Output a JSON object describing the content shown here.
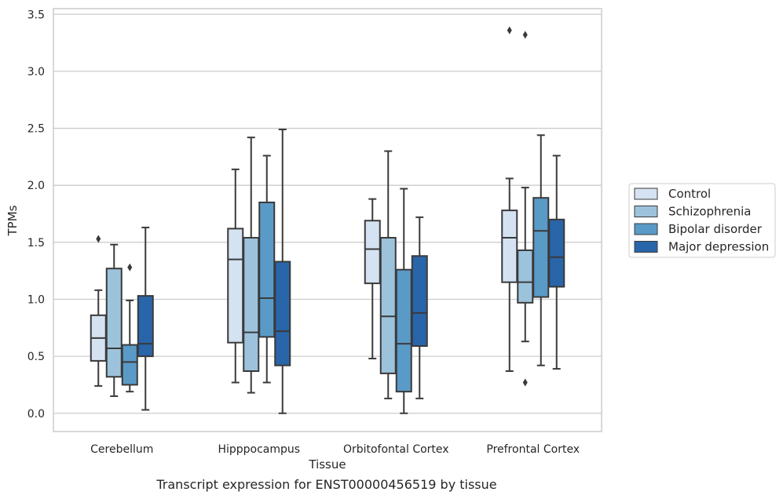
{
  "caption": "Transcript expression for ENST00000456519 by tissue",
  "chart_data": {
    "type": "box",
    "xlabel": "Tissue",
    "ylabel": "TPMs",
    "ylim": [
      -0.16,
      3.55
    ],
    "yticks": [
      "0.0",
      "0.5",
      "1.0",
      "1.5",
      "2.0",
      "2.5",
      "3.0",
      "3.5"
    ],
    "ytick_values": [
      0,
      0.5,
      1.0,
      1.5,
      2.0,
      2.5,
      3.0,
      3.5
    ],
    "grid": "horizontal",
    "legend_position": "right",
    "categories": [
      "Cerebellum",
      "Hipppocampus",
      "Orbitofontal Cortex",
      "Prefrontal Cortex"
    ],
    "series": [
      {
        "name": "Control",
        "color": "#d4e2f2",
        "boxes": [
          {
            "whislo": 0.24,
            "q1": 0.46,
            "med": 0.66,
            "q3": 0.86,
            "whishi": 1.08,
            "fliers": [
              1.53
            ]
          },
          {
            "whislo": 0.27,
            "q1": 0.62,
            "med": 1.35,
            "q3": 1.62,
            "whishi": 2.14,
            "fliers": []
          },
          {
            "whislo": 0.48,
            "q1": 1.14,
            "med": 1.44,
            "q3": 1.69,
            "whishi": 1.88,
            "fliers": []
          },
          {
            "whislo": 0.37,
            "q1": 1.15,
            "med": 1.54,
            "q3": 1.78,
            "whishi": 2.06,
            "fliers": [
              3.36
            ]
          }
        ]
      },
      {
        "name": "Schizophrenia",
        "color": "#9dc3dc",
        "boxes": [
          {
            "whislo": 0.15,
            "q1": 0.32,
            "med": 0.57,
            "q3": 1.27,
            "whishi": 1.48,
            "fliers": []
          },
          {
            "whislo": 0.18,
            "q1": 0.37,
            "med": 0.71,
            "q3": 1.54,
            "whishi": 2.42,
            "fliers": []
          },
          {
            "whislo": 0.13,
            "q1": 0.35,
            "med": 0.85,
            "q3": 1.54,
            "whishi": 2.3,
            "fliers": []
          },
          {
            "whislo": 0.63,
            "q1": 0.97,
            "med": 1.15,
            "q3": 1.43,
            "whishi": 1.98,
            "fliers": [
              3.32,
              0.27
            ]
          }
        ]
      },
      {
        "name": "Bipolar disorder",
        "color": "#5a9ac7",
        "boxes": [
          {
            "whislo": 0.19,
            "q1": 0.25,
            "med": 0.45,
            "q3": 0.6,
            "whishi": 0.99,
            "fliers": [
              1.28
            ]
          },
          {
            "whislo": 0.27,
            "q1": 0.67,
            "med": 1.01,
            "q3": 1.85,
            "whishi": 2.26,
            "fliers": []
          },
          {
            "whislo": 0.0,
            "q1": 0.19,
            "med": 0.61,
            "q3": 1.26,
            "whishi": 1.97,
            "fliers": []
          },
          {
            "whislo": 0.42,
            "q1": 1.02,
            "med": 1.6,
            "q3": 1.89,
            "whishi": 2.44,
            "fliers": []
          }
        ]
      },
      {
        "name": "Major depression",
        "color": "#2965a9",
        "boxes": [
          {
            "whislo": 0.03,
            "q1": 0.5,
            "med": 0.61,
            "q3": 1.03,
            "whishi": 1.63,
            "fliers": []
          },
          {
            "whislo": 0.0,
            "q1": 0.42,
            "med": 0.72,
            "q3": 1.33,
            "whishi": 2.49,
            "fliers": []
          },
          {
            "whislo": 0.13,
            "q1": 0.59,
            "med": 0.88,
            "q3": 1.38,
            "whishi": 1.72,
            "fliers": []
          },
          {
            "whislo": 0.39,
            "q1": 1.11,
            "med": 1.37,
            "q3": 1.7,
            "whishi": 2.26,
            "fliers": []
          }
        ]
      }
    ]
  }
}
